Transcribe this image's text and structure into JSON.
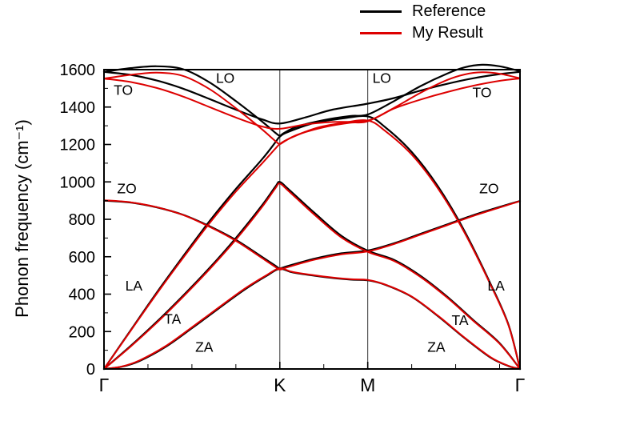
{
  "figure": {
    "legend": [
      {
        "label": "Reference",
        "color": "#000000"
      },
      {
        "label": "My Result",
        "color": "#dd0000"
      }
    ]
  },
  "chart_data": {
    "type": "line",
    "title": "",
    "xlabel": "",
    "ylabel": "Phonon frequency (cm⁻¹)",
    "ylim": [
      0,
      1600
    ],
    "xlim": [
      0,
      4.732
    ],
    "grid": "vertical lines at K and M only",
    "legend_position": "top-right-outside",
    "y_major_ticks": [
      0,
      200,
      400,
      600,
      800,
      1000,
      1200,
      1400,
      1600
    ],
    "y_minor_step": 100,
    "x_ticks": [
      {
        "label": "Γ",
        "x": 0
      },
      {
        "label": "K",
        "x": 2
      },
      {
        "label": "M",
        "x": 3
      },
      {
        "label": "Γ",
        "x": 4.732
      }
    ],
    "x_minor_ticks": [
      0.5,
      1,
      1.5,
      2.5,
      3.5,
      4,
      4.5
    ],
    "gridlines_x": [
      2,
      3
    ],
    "branch_labels": [
      {
        "text": "TO",
        "x": 0.22,
        "y": 1490
      },
      {
        "text": "LO",
        "x": 1.38,
        "y": 1555
      },
      {
        "text": "LO",
        "x": 3.16,
        "y": 1555
      },
      {
        "text": "TO",
        "x": 4.3,
        "y": 1478
      },
      {
        "text": "ZO",
        "x": 0.26,
        "y": 965
      },
      {
        "text": "ZO",
        "x": 4.38,
        "y": 965
      },
      {
        "text": "LA",
        "x": 0.34,
        "y": 445
      },
      {
        "text": "TA",
        "x": 0.78,
        "y": 268
      },
      {
        "text": "ZA",
        "x": 1.14,
        "y": 118
      },
      {
        "text": "ZA",
        "x": 3.78,
        "y": 118
      },
      {
        "text": "TA",
        "x": 4.05,
        "y": 262
      },
      {
        "text": "LA",
        "x": 4.46,
        "y": 445
      }
    ],
    "series": [
      {
        "legend": "Reference",
        "branch": "ZA",
        "color": "#000000",
        "width": 2.2,
        "points": [
          [
            0,
            0
          ],
          [
            0.2,
            12
          ],
          [
            0.4,
            42
          ],
          [
            0.7,
            118
          ],
          [
            1.0,
            218
          ],
          [
            1.3,
            322
          ],
          [
            1.6,
            424
          ],
          [
            1.85,
            498
          ],
          [
            2,
            535
          ],
          [
            2.15,
            516
          ],
          [
            2.5,
            492
          ],
          [
            2.8,
            478
          ],
          [
            3,
            474
          ],
          [
            3.2,
            450
          ],
          [
            3.5,
            386
          ],
          [
            3.8,
            282
          ],
          [
            4.1,
            166
          ],
          [
            4.4,
            60
          ],
          [
            4.6,
            16
          ],
          [
            4.732,
            0
          ]
        ]
      },
      {
        "legend": "Reference",
        "branch": "TA",
        "color": "#000000",
        "width": 2.2,
        "points": [
          [
            0,
            0
          ],
          [
            0.3,
            122
          ],
          [
            0.6,
            252
          ],
          [
            0.9,
            392
          ],
          [
            1.2,
            540
          ],
          [
            1.5,
            700
          ],
          [
            1.8,
            876
          ],
          [
            1.95,
            975
          ],
          [
            2,
            1000
          ],
          [
            2.1,
            960
          ],
          [
            2.4,
            832
          ],
          [
            2.7,
            712
          ],
          [
            3,
            632
          ],
          [
            3.3,
            583
          ],
          [
            3.6,
            498
          ],
          [
            3.9,
            388
          ],
          [
            4.2,
            262
          ],
          [
            4.5,
            138
          ],
          [
            4.732,
            0
          ]
        ]
      },
      {
        "legend": "Reference",
        "branch": "LA",
        "color": "#000000",
        "width": 2.2,
        "points": [
          [
            0,
            0
          ],
          [
            0.3,
            205
          ],
          [
            0.6,
            408
          ],
          [
            0.9,
            602
          ],
          [
            1.2,
            790
          ],
          [
            1.5,
            962
          ],
          [
            1.8,
            1122
          ],
          [
            1.95,
            1212
          ],
          [
            2,
            1242
          ],
          [
            2.1,
            1268
          ],
          [
            2.4,
            1316
          ],
          [
            2.7,
            1338
          ],
          [
            3,
            1350
          ],
          [
            3.2,
            1292
          ],
          [
            3.5,
            1160
          ],
          [
            3.8,
            975
          ],
          [
            4.1,
            738
          ],
          [
            4.4,
            452
          ],
          [
            4.6,
            238
          ],
          [
            4.732,
            0
          ]
        ]
      },
      {
        "legend": "Reference",
        "branch": "ZO",
        "color": "#000000",
        "width": 2.2,
        "points": [
          [
            0,
            900
          ],
          [
            0.3,
            890
          ],
          [
            0.6,
            864
          ],
          [
            0.9,
            824
          ],
          [
            1.2,
            763
          ],
          [
            1.5,
            690
          ],
          [
            1.8,
            598
          ],
          [
            1.95,
            552
          ],
          [
            2,
            538
          ],
          [
            2.1,
            552
          ],
          [
            2.4,
            590
          ],
          [
            2.7,
            618
          ],
          [
            3,
            633
          ],
          [
            3.3,
            672
          ],
          [
            3.6,
            722
          ],
          [
            3.9,
            772
          ],
          [
            4.2,
            822
          ],
          [
            4.5,
            866
          ],
          [
            4.732,
            898
          ]
        ]
      },
      {
        "legend": "Reference",
        "branch": "TO",
        "color": "#000000",
        "width": 2.2,
        "points": [
          [
            0,
            1588
          ],
          [
            0.3,
            1572
          ],
          [
            0.6,
            1542
          ],
          [
            0.9,
            1498
          ],
          [
            1.2,
            1443
          ],
          [
            1.5,
            1386
          ],
          [
            1.8,
            1334
          ],
          [
            2,
            1312
          ],
          [
            2.3,
            1346
          ],
          [
            2.6,
            1386
          ],
          [
            3,
            1418
          ],
          [
            3.3,
            1448
          ],
          [
            3.6,
            1488
          ],
          [
            3.9,
            1524
          ],
          [
            4.2,
            1554
          ],
          [
            4.5,
            1576
          ],
          [
            4.732,
            1588
          ]
        ]
      },
      {
        "legend": "Reference",
        "branch": "LO",
        "color": "#000000",
        "width": 2.2,
        "points": [
          [
            0,
            1588
          ],
          [
            0.3,
            1608
          ],
          [
            0.6,
            1618
          ],
          [
            0.9,
            1602
          ],
          [
            1.2,
            1532
          ],
          [
            1.5,
            1432
          ],
          [
            1.8,
            1322
          ],
          [
            1.95,
            1262
          ],
          [
            2,
            1248
          ],
          [
            2.05,
            1262
          ],
          [
            2.2,
            1296
          ],
          [
            2.5,
            1330
          ],
          [
            2.8,
            1352
          ],
          [
            3,
            1360
          ],
          [
            3.3,
            1432
          ],
          [
            3.6,
            1512
          ],
          [
            3.9,
            1578
          ],
          [
            4.1,
            1612
          ],
          [
            4.3,
            1626
          ],
          [
            4.5,
            1618
          ],
          [
            4.732,
            1592
          ]
        ]
      },
      {
        "legend": "My Result",
        "branch": "ZA",
        "color": "#dd0000",
        "width": 2,
        "points": [
          [
            0,
            0
          ],
          [
            0.2,
            13
          ],
          [
            0.4,
            45
          ],
          [
            0.7,
            122
          ],
          [
            1.0,
            223
          ],
          [
            1.3,
            327
          ],
          [
            1.6,
            429
          ],
          [
            1.85,
            502
          ],
          [
            2,
            538
          ],
          [
            2.15,
            518
          ],
          [
            2.5,
            494
          ],
          [
            2.8,
            480
          ],
          [
            3,
            476
          ],
          [
            3.2,
            451
          ],
          [
            3.5,
            387
          ],
          [
            3.8,
            284
          ],
          [
            4.1,
            168
          ],
          [
            4.4,
            62
          ],
          [
            4.6,
            17
          ],
          [
            4.732,
            0
          ]
        ]
      },
      {
        "legend": "My Result",
        "branch": "TA",
        "color": "#dd0000",
        "width": 2,
        "points": [
          [
            0,
            0
          ],
          [
            0.3,
            119
          ],
          [
            0.6,
            247
          ],
          [
            0.9,
            386
          ],
          [
            1.2,
            533
          ],
          [
            1.5,
            691
          ],
          [
            1.8,
            867
          ],
          [
            1.95,
            966
          ],
          [
            2,
            991
          ],
          [
            2.1,
            951
          ],
          [
            2.4,
            822
          ],
          [
            2.7,
            703
          ],
          [
            3,
            626
          ],
          [
            3.3,
            577
          ],
          [
            3.6,
            492
          ],
          [
            3.9,
            383
          ],
          [
            4.2,
            258
          ],
          [
            4.5,
            135
          ],
          [
            4.732,
            0
          ]
        ]
      },
      {
        "legend": "My Result",
        "branch": "LA",
        "color": "#dd0000",
        "width": 2,
        "points": [
          [
            0,
            0
          ],
          [
            0.3,
            202
          ],
          [
            0.6,
            402
          ],
          [
            0.9,
            594
          ],
          [
            1.2,
            779
          ],
          [
            1.5,
            948
          ],
          [
            1.8,
            1100
          ],
          [
            1.95,
            1178
          ],
          [
            2,
            1202
          ],
          [
            2.1,
            1230
          ],
          [
            2.4,
            1286
          ],
          [
            2.7,
            1314
          ],
          [
            3,
            1328
          ],
          [
            3.2,
            1272
          ],
          [
            3.5,
            1146
          ],
          [
            3.8,
            964
          ],
          [
            4.1,
            730
          ],
          [
            4.4,
            447
          ],
          [
            4.6,
            235
          ],
          [
            4.732,
            0
          ]
        ]
      },
      {
        "legend": "My Result",
        "branch": "ZO",
        "color": "#dd0000",
        "width": 2,
        "points": [
          [
            0,
            902
          ],
          [
            0.3,
            891
          ],
          [
            0.6,
            865
          ],
          [
            0.9,
            823
          ],
          [
            1.2,
            760
          ],
          [
            1.5,
            685
          ],
          [
            1.8,
            592
          ],
          [
            1.95,
            545
          ],
          [
            2,
            531
          ],
          [
            2.1,
            546
          ],
          [
            2.4,
            585
          ],
          [
            2.7,
            613
          ],
          [
            3,
            628
          ],
          [
            3.3,
            668
          ],
          [
            3.6,
            718
          ],
          [
            3.9,
            768
          ],
          [
            4.2,
            818
          ],
          [
            4.5,
            863
          ],
          [
            4.732,
            897
          ]
        ]
      },
      {
        "legend": "My Result",
        "branch": "TO",
        "color": "#dd0000",
        "width": 2,
        "points": [
          [
            0,
            1552
          ],
          [
            0.3,
            1534
          ],
          [
            0.6,
            1502
          ],
          [
            0.9,
            1456
          ],
          [
            1.2,
            1400
          ],
          [
            1.5,
            1344
          ],
          [
            1.8,
            1296
          ],
          [
            2,
            1284
          ],
          [
            2.3,
            1308
          ],
          [
            2.6,
            1320
          ],
          [
            3,
            1328
          ],
          [
            3.3,
            1392
          ],
          [
            3.6,
            1440
          ],
          [
            3.9,
            1480
          ],
          [
            4.2,
            1514
          ],
          [
            4.5,
            1540
          ],
          [
            4.732,
            1553
          ]
        ]
      },
      {
        "legend": "My Result",
        "branch": "LO",
        "color": "#dd0000",
        "width": 2,
        "points": [
          [
            0,
            1552
          ],
          [
            0.3,
            1572
          ],
          [
            0.6,
            1584
          ],
          [
            0.9,
            1566
          ],
          [
            1.2,
            1496
          ],
          [
            1.5,
            1394
          ],
          [
            1.8,
            1280
          ],
          [
            1.95,
            1218
          ],
          [
            2,
            1202
          ],
          [
            2.05,
            1216
          ],
          [
            2.2,
            1252
          ],
          [
            2.5,
            1292
          ],
          [
            2.8,
            1316
          ],
          [
            3,
            1324
          ],
          [
            3.3,
            1396
          ],
          [
            3.6,
            1476
          ],
          [
            3.9,
            1544
          ],
          [
            4.1,
            1574
          ],
          [
            4.3,
            1586
          ],
          [
            4.5,
            1578
          ],
          [
            4.732,
            1554
          ]
        ]
      }
    ]
  }
}
